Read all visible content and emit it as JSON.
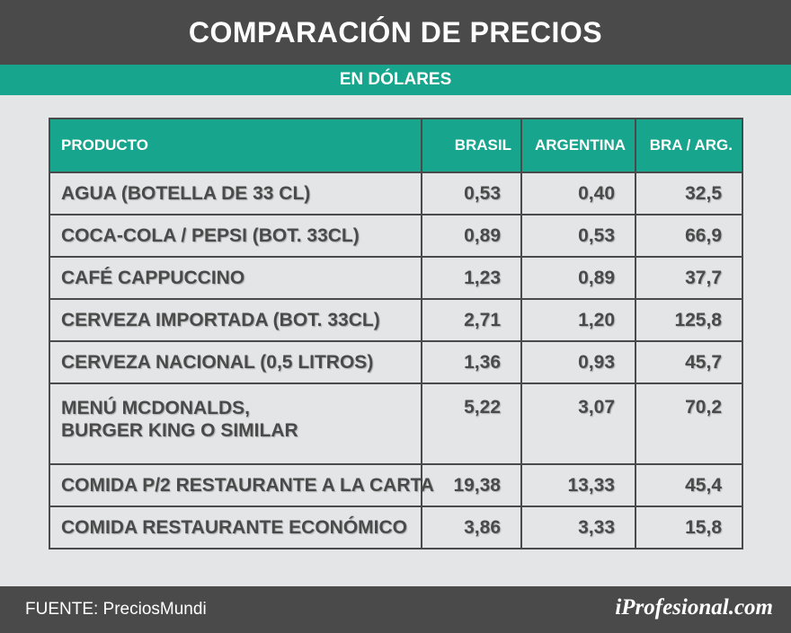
{
  "header": {
    "title": "COMPARACIÓN DE PRECIOS",
    "subtitle": "EN DÓLARES"
  },
  "chart_data": {
    "type": "table",
    "columns": [
      "PRODUCTO",
      "BRASIL",
      "ARGENTINA",
      "BRA / ARG."
    ],
    "rows": [
      [
        "AGUA (BOTELLA DE 33 CL)",
        "0,53",
        "0,40",
        "32,5"
      ],
      [
        "COCA-COLA / PEPSI (BOT. 33CL)",
        "0,89",
        "0,53",
        "66,9"
      ],
      [
        "CAFÉ CAPPUCCINO",
        "1,23",
        "0,89",
        "37,7"
      ],
      [
        "CERVEZA IMPORTADA (BOT. 33CL)",
        "2,71",
        "1,20",
        "125,8"
      ],
      [
        "CERVEZA NACIONAL (0,5 LITROS)",
        "1,36",
        "0,93",
        "45,7"
      ],
      [
        "MENÚ MCDONALDS,\nBURGER KING O SIMILAR",
        "5,22",
        "3,07",
        "70,2"
      ],
      [
        "COMIDA P/2 RESTAURANTE A LA CARTA",
        "19,38",
        "13,33",
        "45,4"
      ],
      [
        "COMIDA RESTAURANTE ECONÓMICO",
        "3,86",
        "3,33",
        "15,8"
      ]
    ]
  },
  "footer": {
    "source": "FUENTE: PreciosMundi",
    "logo": "iProfesional.com"
  },
  "colors": {
    "dark": "#4a4a4a",
    "accent": "#17a58e",
    "background": "#e4e5e6"
  }
}
